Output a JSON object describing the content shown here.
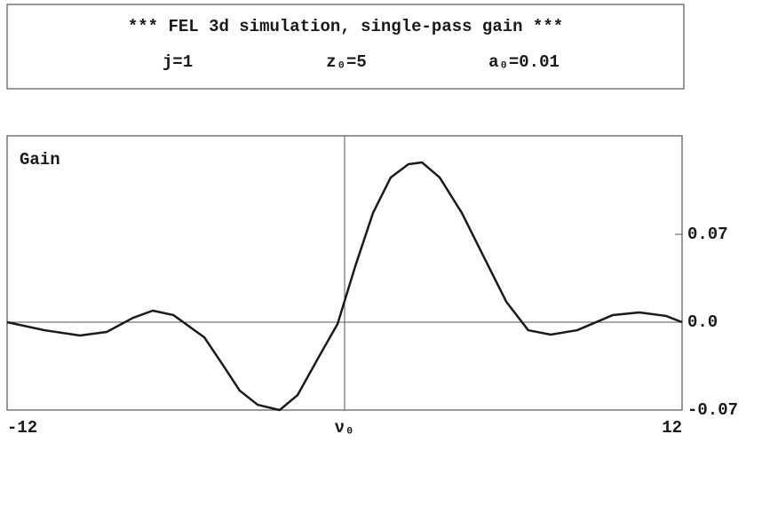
{
  "chart_data": {
    "type": "line",
    "title": "*** FEL 3d simulation, single-pass gain ***",
    "annotations": [
      "j=1",
      "z₀=5",
      "a₀=0.01"
    ],
    "ylabel": "Gain",
    "x": [
      -12,
      -10.67,
      -9.41,
      -8.46,
      -7.52,
      -6.82,
      -6.09,
      -4.99,
      -4.36,
      -3.73,
      -3.09,
      -2.31,
      -1.67,
      -0.88,
      -0.25,
      0.38,
      1.01,
      1.64,
      2.27,
      2.75,
      3.38,
      4.17,
      4.96,
      5.75,
      6.53,
      7.33,
      8.27,
      9.54,
      10.48,
      11.43,
      12
    ],
    "series": [
      {
        "name": "Gain",
        "color": "#1a1a1a",
        "values": [
          0,
          -0.0064,
          -0.0106,
          -0.0078,
          0.0035,
          0.0092,
          0.0057,
          -0.012,
          -0.033,
          -0.0545,
          -0.0658,
          -0.07,
          -0.058,
          -0.0262,
          -0.0014,
          0.0446,
          0.087,
          0.1153,
          0.1259,
          0.1273,
          0.1153,
          0.087,
          0.0516,
          0.0163,
          -0.0064,
          -0.0099,
          -0.0064,
          0.0057,
          0.0078,
          0.005,
          0
        ]
      }
    ],
    "xlim": [
      -12,
      12
    ],
    "xticks": [
      -12,
      {
        "value": 0,
        "label": "ν₀"
      },
      12
    ],
    "ylim": [
      -0.07,
      0.1485
    ],
    "yticks": [
      -0.07,
      {
        "value": 0,
        "label": "0.0"
      },
      0.07
    ],
    "zero_lines": true
  }
}
